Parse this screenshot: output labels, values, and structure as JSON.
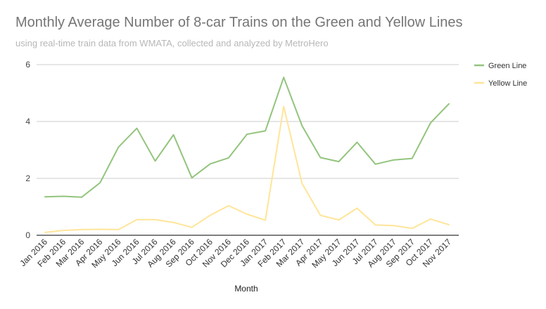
{
  "chart_data": {
    "type": "line",
    "title": "Monthly Average Number of 8-car Trains on the Green and Yellow Lines",
    "subtitle": "using real-time train data from WMATA, collected and analyzed by MetroHero",
    "xlabel": "Month",
    "ylabel": "",
    "ylim": [
      0,
      6
    ],
    "yticks": [
      "0",
      "2",
      "4",
      "6"
    ],
    "grid": true,
    "legend_position": "right",
    "categories": [
      "Jan 2016",
      "Feb 2016",
      "Mar 2016",
      "Apr 2016",
      "May 2016",
      "Jun 2016",
      "Jul 2016",
      "Aug 2016",
      "Sep 2016",
      "Oct 2016",
      "Nov 2016",
      "Dec 2016",
      "Jan 2017",
      "Feb 2017",
      "Mar 2017",
      "Apr 2017",
      "May 2017",
      "Jun 2017",
      "Jul 2017",
      "Aug 2017",
      "Sep 2017",
      "Oct 2017",
      "Nov 2017"
    ],
    "series": [
      {
        "name": "Green Line",
        "color": "#93c47d",
        "values": [
          1.35,
          1.37,
          1.34,
          1.85,
          3.1,
          3.76,
          2.61,
          3.53,
          2.02,
          2.51,
          2.72,
          3.55,
          3.67,
          5.55,
          3.85,
          2.73,
          2.59,
          3.27,
          2.5,
          2.65,
          2.7,
          3.95,
          4.62
        ]
      },
      {
        "name": "Yellow Line",
        "color": "#ffe599",
        "values": [
          0.1,
          0.17,
          0.2,
          0.21,
          0.2,
          0.55,
          0.55,
          0.45,
          0.28,
          0.7,
          1.04,
          0.74,
          0.53,
          4.53,
          1.82,
          0.7,
          0.54,
          0.95,
          0.36,
          0.34,
          0.24,
          0.57,
          0.37
        ]
      }
    ]
  }
}
